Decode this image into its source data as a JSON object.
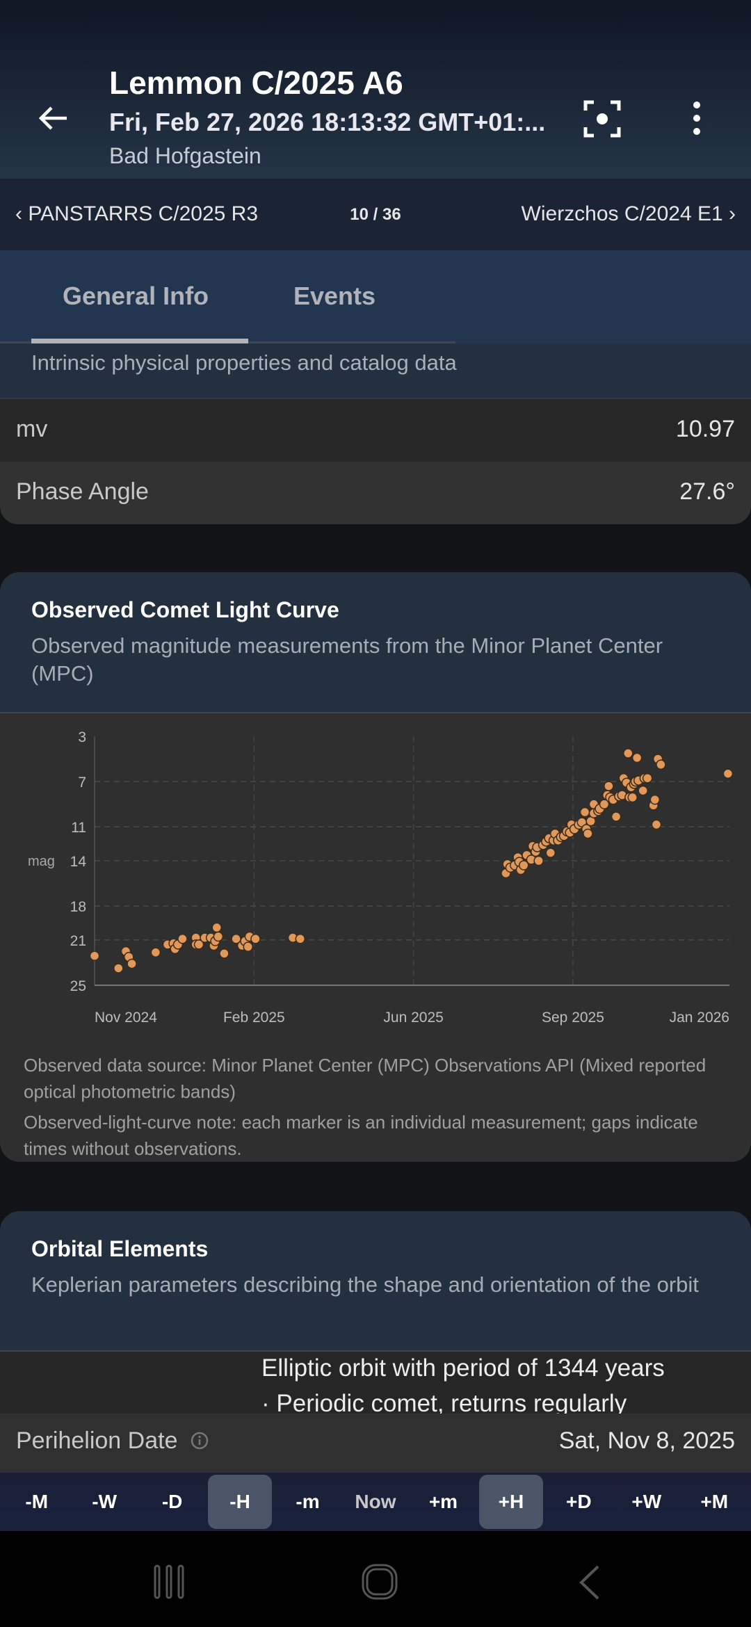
{
  "header": {
    "title": "Lemmon C/2025 A6",
    "datetime": "Fri, Feb 27, 2026 18:13:32 GMT+01:...",
    "location": "Bad Hofgastein",
    "icons": [
      "arrow-back-icon",
      "center-focus-icon",
      "more-vert-icon"
    ]
  },
  "nav": {
    "prev": "PANSTARRS C/2025 R3",
    "count": "10 / 36",
    "next": "Wierzchos C/2024 E1"
  },
  "tabs": [
    {
      "label": "General Info",
      "selected": true
    },
    {
      "label": "Events",
      "selected": false
    }
  ],
  "intrinsic": {
    "subtitle": "Intrinsic physical properties and catalog data",
    "rows": [
      {
        "label": "mv",
        "value": "10.97"
      },
      {
        "label": "Phase Angle",
        "value": "27.6°"
      }
    ]
  },
  "light_curve": {
    "title": "Observed Comet Light Curve",
    "subtitle": "Observed magnitude measurements from the Minor Planet Center (MPC)",
    "note1": "Observed data source: Minor Planet Center (MPC) Observations API (Mixed reported optical photometric bands)",
    "note2": "Observed-light-curve note: each marker is an individual measurement; gaps indicate times without observations."
  },
  "chart_data": {
    "type": "scatter",
    "ylabel": "mag",
    "y_inverted": true,
    "ylim": [
      25,
      3
    ],
    "yticks": [
      3,
      7,
      11,
      14,
      18,
      21,
      25
    ],
    "xlim": [
      "2024-11-01",
      "2026-01-01"
    ],
    "xticks": [
      {
        "date": "2024-11-01",
        "label": "Nov 2024"
      },
      {
        "date": "2025-02-16",
        "label": "Feb 2025"
      },
      {
        "date": "2025-06-03",
        "label": "Jun 2025"
      },
      {
        "date": "2025-09-18",
        "label": "Sep 2025"
      },
      {
        "date": "2026-01-01",
        "label": "Jan 2026"
      }
    ],
    "grid": true,
    "marker_color": "#e0995a",
    "points": [
      [
        "2024-11-01",
        22.4
      ],
      [
        "2024-11-17",
        23.5
      ],
      [
        "2024-11-22",
        22.0
      ],
      [
        "2024-11-24",
        22.5
      ],
      [
        "2024-11-26",
        23.1
      ],
      [
        "2024-12-12",
        22.1
      ],
      [
        "2024-12-20",
        21.4
      ],
      [
        "2024-12-24",
        21.3
      ],
      [
        "2024-12-25",
        21.8
      ],
      [
        "2024-12-27",
        21.4
      ],
      [
        "2024-12-30",
        20.9
      ],
      [
        "2025-01-08",
        20.8
      ],
      [
        "2025-01-08",
        21.4
      ],
      [
        "2025-01-10",
        21.4
      ],
      [
        "2025-01-14",
        20.8
      ],
      [
        "2025-01-18",
        20.8
      ],
      [
        "2025-01-20",
        21.5
      ],
      [
        "2025-01-21",
        21.1
      ],
      [
        "2025-01-22",
        19.9
      ],
      [
        "2025-01-23",
        20.7
      ],
      [
        "2025-01-27",
        22.2
      ],
      [
        "2025-02-04",
        20.9
      ],
      [
        "2025-02-08",
        21.5
      ],
      [
        "2025-02-10",
        21.1
      ],
      [
        "2025-02-12",
        21.6
      ],
      [
        "2025-02-13",
        20.7
      ],
      [
        "2025-02-17",
        20.9
      ],
      [
        "2025-03-14",
        20.8
      ],
      [
        "2025-03-19",
        20.9
      ],
      [
        "2025-08-04",
        15.1
      ],
      [
        "2025-08-05",
        14.3
      ],
      [
        "2025-08-07",
        14.6
      ],
      [
        "2025-08-10",
        14.4
      ],
      [
        "2025-08-12",
        13.7
      ],
      [
        "2025-08-13",
        14.1
      ],
      [
        "2025-08-14",
        14.8
      ],
      [
        "2025-08-16",
        14.4
      ],
      [
        "2025-08-18",
        13.5
      ],
      [
        "2025-08-21",
        13.9
      ],
      [
        "2025-08-22",
        12.7
      ],
      [
        "2025-08-24",
        13.2
      ],
      [
        "2025-08-25",
        12.8
      ],
      [
        "2025-08-26",
        14.0
      ],
      [
        "2025-08-29",
        12.6
      ],
      [
        "2025-08-31",
        12.3
      ],
      [
        "2025-09-02",
        12.0
      ],
      [
        "2025-09-03",
        13.3
      ],
      [
        "2025-09-05",
        12.2
      ],
      [
        "2025-09-06",
        11.6
      ],
      [
        "2025-09-08",
        12.2
      ],
      [
        "2025-09-10",
        11.9
      ],
      [
        "2025-09-12",
        11.8
      ],
      [
        "2025-09-14",
        11.4
      ],
      [
        "2025-09-16",
        11.5
      ],
      [
        "2025-09-17",
        10.8
      ],
      [
        "2025-09-19",
        11.2
      ],
      [
        "2025-09-22",
        10.8
      ],
      [
        "2025-09-24",
        10.6
      ],
      [
        "2025-09-26",
        9.7
      ],
      [
        "2025-09-27",
        11.2
      ],
      [
        "2025-09-28",
        11.6
      ],
      [
        "2025-09-30",
        10.5
      ],
      [
        "2025-10-02",
        9.8
      ],
      [
        "2025-10-02",
        9.0
      ],
      [
        "2025-10-05",
        9.6
      ],
      [
        "2025-10-06",
        9.4
      ],
      [
        "2025-10-09",
        9.0
      ],
      [
        "2025-10-11",
        8.2
      ],
      [
        "2025-10-12",
        7.4
      ],
      [
        "2025-10-13",
        8.4
      ],
      [
        "2025-10-15",
        8.6
      ],
      [
        "2025-10-17",
        10.1
      ],
      [
        "2025-10-19",
        8.3
      ],
      [
        "2025-10-21",
        8.2
      ],
      [
        "2025-10-22",
        6.7
      ],
      [
        "2025-10-24",
        7.1
      ],
      [
        "2025-10-25",
        4.5
      ],
      [
        "2025-10-26",
        8.4
      ],
      [
        "2025-10-27",
        7.5
      ],
      [
        "2025-10-28",
        8.4
      ],
      [
        "2025-10-29",
        7.2
      ],
      [
        "2025-10-30",
        7.0
      ],
      [
        "2025-10-31",
        4.9
      ],
      [
        "2025-11-01",
        6.9
      ],
      [
        "2025-11-04",
        7.8
      ],
      [
        "2025-11-05",
        6.7
      ],
      [
        "2025-11-07",
        6.7
      ],
      [
        "2025-11-11",
        9.1
      ],
      [
        "2025-11-12",
        8.6
      ],
      [
        "2025-11-13",
        10.8
      ],
      [
        "2025-11-14",
        5.0
      ],
      [
        "2025-11-16",
        5.5
      ],
      [
        "2025-12-31",
        6.3
      ]
    ]
  },
  "orbital": {
    "title": "Orbital Elements",
    "subtitle": "Keplerian parameters describing the shape and orientation of the orbit",
    "line1": "Elliptic orbit with period of 1344 years",
    "line2": "· Periodic comet, returns regularly",
    "perihelion_label": "Perihelion Date",
    "perihelion_value": "Sat, Nov 8, 2025"
  },
  "timebar": [
    {
      "label": "-M"
    },
    {
      "label": "-W"
    },
    {
      "label": "-D"
    },
    {
      "label": "-H",
      "selected": true
    },
    {
      "label": "-m"
    },
    {
      "label": "Now"
    },
    {
      "label": "+m"
    },
    {
      "label": "+H",
      "selected": true
    },
    {
      "label": "+D"
    },
    {
      "label": "+W"
    },
    {
      "label": "+M"
    }
  ]
}
